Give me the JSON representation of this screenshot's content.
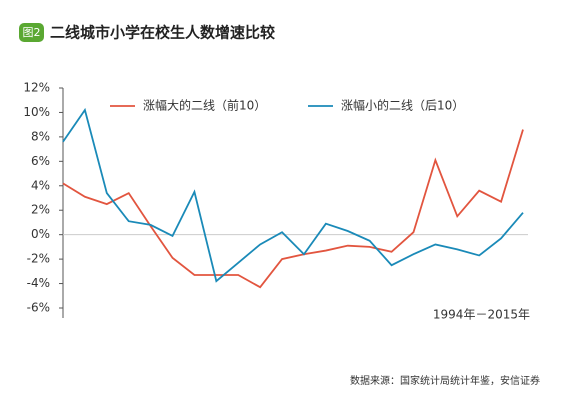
{
  "badge": "图2",
  "chart_data": {
    "type": "line",
    "title": "二线城市小学在校生人数增速比较",
    "categories": [
      null,
      null,
      null,
      null,
      null,
      null,
      null,
      null,
      null,
      null,
      null,
      null,
      null,
      null,
      null,
      null,
      null,
      null,
      null,
      null,
      null,
      null
    ],
    "series": [
      {
        "name": "涨幅大的二线（前10）",
        "color": "#e2553f",
        "values": [
          4.2,
          3.1,
          2.5,
          3.4,
          0.7,
          -1.9,
          -3.3,
          -3.3,
          -3.3,
          -4.3,
          -2.0,
          -1.6,
          -1.3,
          -0.9,
          -1.0,
          -1.4,
          0.2,
          6.1,
          1.5,
          3.6,
          2.7,
          8.6
        ]
      },
      {
        "name": "涨幅小的二线（后10）",
        "color": "#1a8ab8",
        "values": [
          7.6,
          10.2,
          3.4,
          1.1,
          0.8,
          -0.1,
          3.5,
          -3.8,
          -2.3,
          -0.8,
          0.2,
          -1.6,
          0.9,
          0.3,
          -0.5,
          -2.5,
          -1.6,
          -0.8,
          -1.2,
          -1.7,
          -0.3,
          1.8
        ]
      }
    ],
    "ylim": [
      -6,
      12
    ],
    "yticks": [
      {
        "value": -6,
        "label": "-6%"
      },
      {
        "value": -4,
        "label": "-4%"
      },
      {
        "value": -2,
        "label": "-2%"
      },
      {
        "value": 0,
        "label": "0%"
      },
      {
        "value": 2,
        "label": "2%"
      },
      {
        "value": 4,
        "label": "4%"
      },
      {
        "value": 6,
        "label": "6%"
      },
      {
        "value": 8,
        "label": "8%"
      },
      {
        "value": 10,
        "label": "10%"
      },
      {
        "value": 12,
        "label": "12%"
      }
    ],
    "annotation": "1994年－2015年",
    "grid": false
  },
  "source": "数据来源：国家统计局统计年鉴，安信证券"
}
